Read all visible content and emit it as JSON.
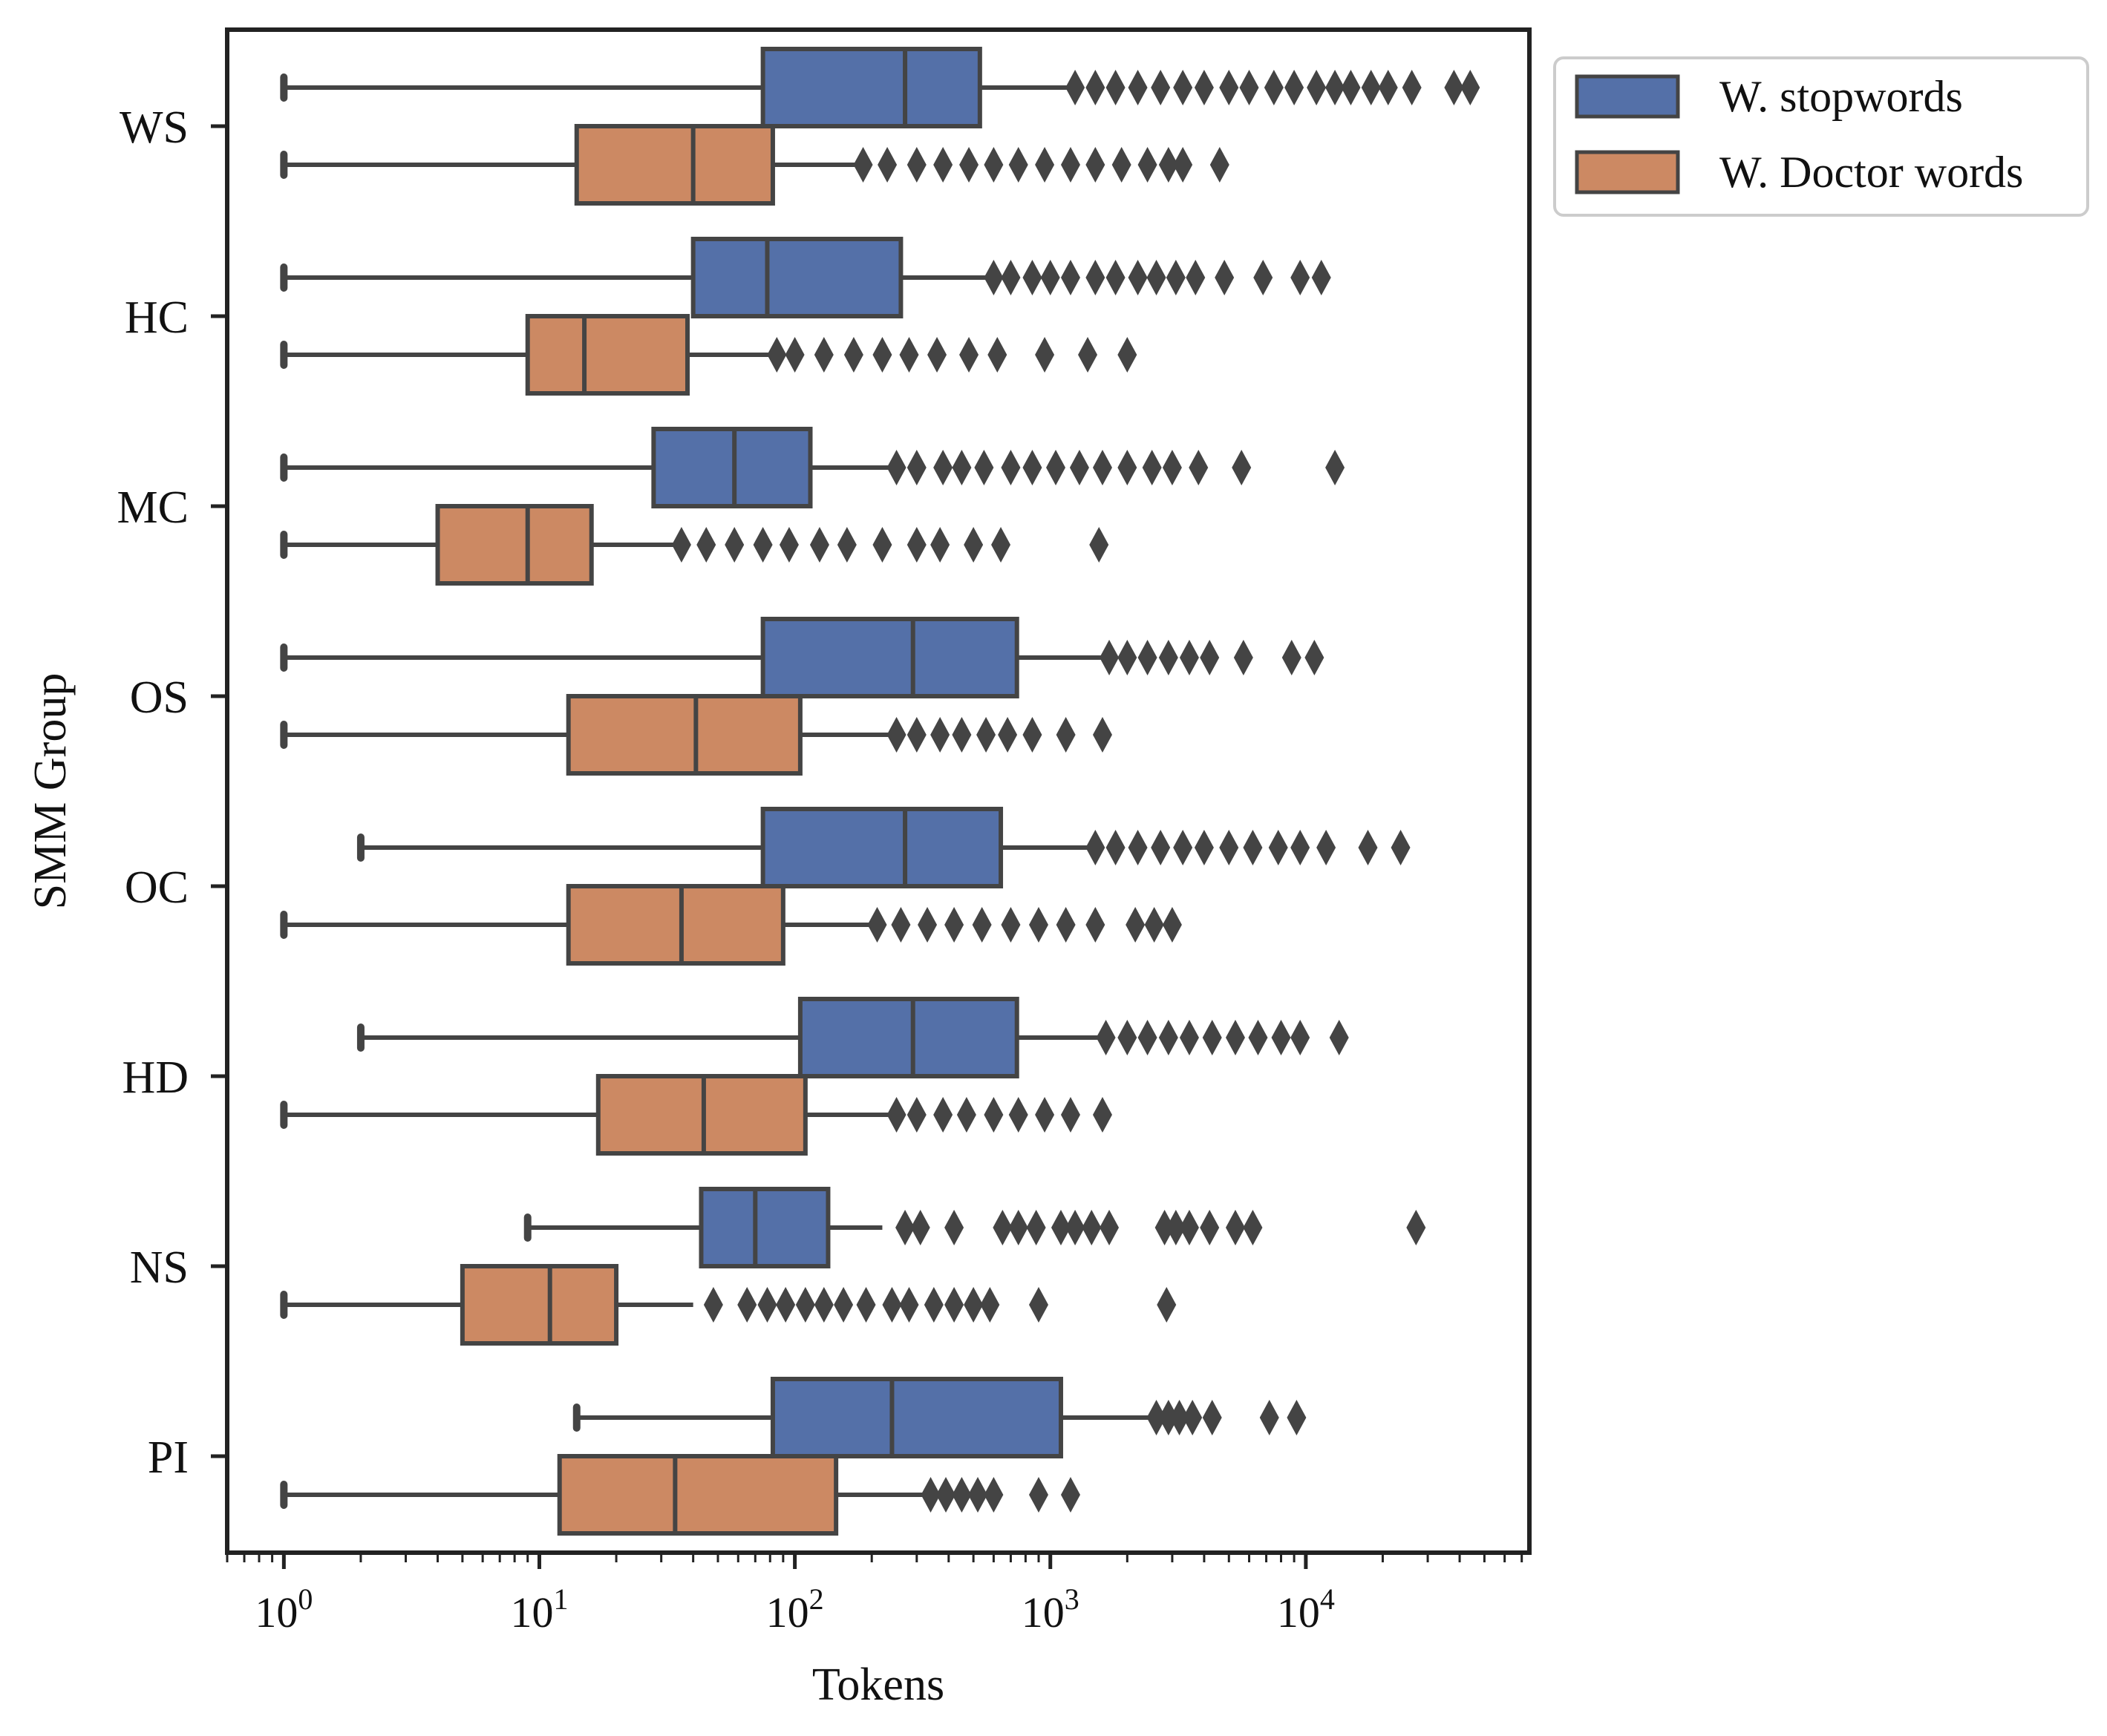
{
  "chart_data": {
    "type": "boxplot",
    "orientation": "horizontal",
    "title": "",
    "xlabel": "Tokens",
    "ylabel": "SMM Group",
    "xscale": "log",
    "xlim": [
      0.6,
      75000
    ],
    "x_tick_labels": [
      {
        "base": "10",
        "exp": "0",
        "value": 1
      },
      {
        "base": "10",
        "exp": "1",
        "value": 10
      },
      {
        "base": "10",
        "exp": "2",
        "value": 100
      },
      {
        "base": "10",
        "exp": "3",
        "value": 1000
      },
      {
        "base": "10",
        "exp": "4",
        "value": 10000
      }
    ],
    "categories": [
      "WS",
      "HC",
      "MC",
      "OS",
      "OC",
      "HD",
      "NS",
      "PI"
    ],
    "legend": {
      "position": "outside-top-right",
      "entries": [
        "W. stopwords",
        "W. Doctor words"
      ]
    },
    "series": [
      {
        "name": "W. stopwords",
        "color": "#5470a8",
        "boxes": [
          {
            "group": "WS",
            "whisker_low": 1,
            "q1": 75,
            "median": 270,
            "q3": 530,
            "whisker_high": 1200,
            "outliers": [
              1250,
              1500,
              1800,
              2200,
              2700,
              3300,
              4000,
              5000,
              6000,
              7500,
              9000,
              11000,
              13000,
              15000,
              18000,
              21000,
              26000,
              38000,
              44000
            ]
          },
          {
            "group": "HC",
            "whisker_low": 1,
            "q1": 40,
            "median": 78,
            "q3": 260,
            "whisker_high": 570,
            "outliers": [
              600,
              700,
              850,
              1000,
              1200,
              1500,
              1800,
              2200,
              2600,
              3100,
              3700,
              4800,
              6800,
              9500,
              11500
            ]
          },
          {
            "group": "MC",
            "whisker_low": 1,
            "q1": 28,
            "median": 58,
            "q3": 115,
            "whisker_high": 240,
            "outliers": [
              250,
              300,
              380,
              450,
              550,
              700,
              850,
              1050,
              1300,
              1600,
              2000,
              2500,
              3000,
              3800,
              5600,
              13000
            ]
          },
          {
            "group": "OS",
            "whisker_low": 1,
            "q1": 75,
            "median": 290,
            "q3": 740,
            "whisker_high": 1650,
            "outliers": [
              1700,
              2000,
              2400,
              2900,
              3500,
              4200,
              5700,
              8800,
              10800
            ]
          },
          {
            "group": "OC",
            "whisker_low": 2,
            "q1": 75,
            "median": 270,
            "q3": 640,
            "whisker_high": 1450,
            "outliers": [
              1500,
              1800,
              2200,
              2700,
              3300,
              4000,
              5000,
              6200,
              7800,
              9500,
              12000,
              17500,
              23500
            ]
          },
          {
            "group": "HD",
            "whisker_low": 2,
            "q1": 105,
            "median": 290,
            "q3": 740,
            "whisker_high": 1600,
            "outliers": [
              1650,
              2000,
              2400,
              2900,
              3500,
              4300,
              5300,
              6500,
              8000,
              9500,
              13500
            ]
          },
          {
            "group": "NS",
            "whisker_low": 9,
            "q1": 43,
            "median": 70,
            "q3": 135,
            "whisker_high": 220,
            "outliers": [
              270,
              310,
              420,
              650,
              750,
              880,
              1100,
              1250,
              1450,
              1700,
              2800,
              3100,
              3500,
              4200,
              5300,
              6200,
              27000
            ]
          },
          {
            "group": "PI",
            "whisker_low": 14,
            "q1": 82,
            "median": 240,
            "q3": 1100,
            "whisker_high": 2500,
            "outliers": [
              2600,
              2900,
              3200,
              3600,
              4300,
              7200,
              9200
            ]
          }
        ]
      },
      {
        "name": "W. Doctor words",
        "color": "#cc8963",
        "boxes": [
          {
            "group": "WS",
            "whisker_low": 1,
            "q1": 14,
            "median": 40,
            "q3": 82,
            "whisker_high": 180,
            "outliers": [
              185,
              230,
              300,
              380,
              480,
              600,
              750,
              950,
              1200,
              1500,
              1900,
              2400,
              2900,
              3300,
              4600
            ]
          },
          {
            "group": "HC",
            "whisker_low": 1,
            "q1": 9,
            "median": 15,
            "q3": 38,
            "whisker_high": 80,
            "outliers": [
              85,
              100,
              130,
              170,
              220,
              280,
              360,
              480,
              620,
              950,
              1400,
              2000
            ]
          },
          {
            "group": "MC",
            "whisker_low": 1,
            "q1": 4,
            "median": 9,
            "q3": 16,
            "whisker_high": 34,
            "outliers": [
              36,
              45,
              58,
              75,
              95,
              125,
              160,
              220,
              300,
              370,
              500,
              640,
              1550
            ]
          },
          {
            "group": "OS",
            "whisker_low": 1,
            "q1": 13,
            "median": 41,
            "q3": 105,
            "whisker_high": 240,
            "outliers": [
              250,
              300,
              370,
              450,
              560,
              680,
              850,
              1150,
              1600
            ]
          },
          {
            "group": "OC",
            "whisker_low": 1,
            "q1": 13,
            "median": 36,
            "q3": 90,
            "whisker_high": 200,
            "outliers": [
              210,
              260,
              330,
              420,
              540,
              700,
              900,
              1150,
              1500,
              2150,
              2550,
              3000
            ]
          },
          {
            "group": "HD",
            "whisker_low": 1,
            "q1": 17,
            "median": 44,
            "q3": 110,
            "whisker_high": 240,
            "outliers": [
              250,
              300,
              380,
              470,
              600,
              750,
              950,
              1200,
              1600
            ]
          },
          {
            "group": "NS",
            "whisker_low": 1,
            "q1": 5,
            "median": 11,
            "q3": 20,
            "whisker_high": 40,
            "outliers": [
              48,
              65,
              78,
              92,
              110,
              130,
              155,
              190,
              240,
              280,
              350,
              420,
              500,
              580,
              900,
              2850
            ]
          },
          {
            "group": "PI",
            "whisker_low": 1,
            "q1": 12,
            "median": 34,
            "q3": 145,
            "whisker_high": 330,
            "outliers": [
              340,
              390,
              450,
              520,
              600,
              900,
              1200
            ]
          }
        ]
      }
    ]
  }
}
